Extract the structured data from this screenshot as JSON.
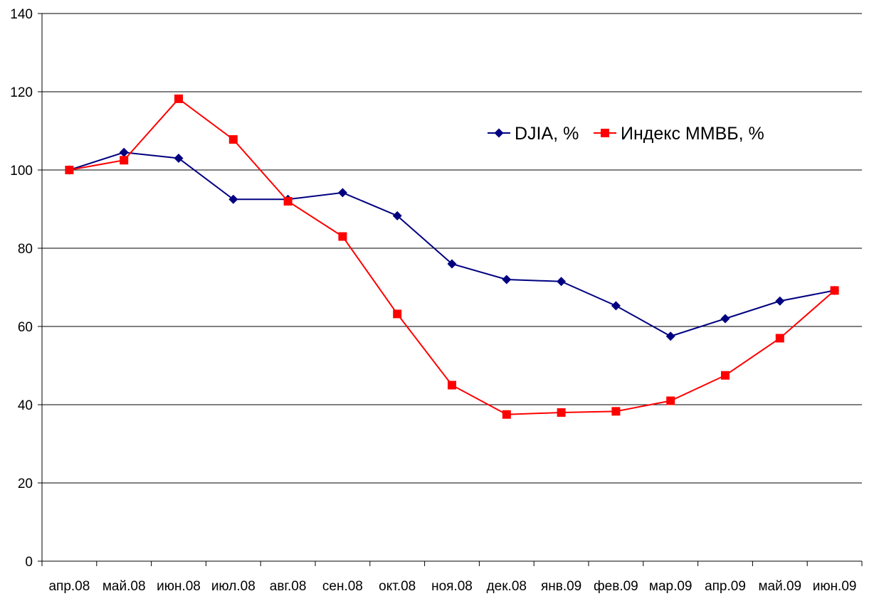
{
  "chart_data": {
    "type": "line",
    "title": "",
    "xlabel": "",
    "ylabel": "",
    "ylim": [
      0,
      140
    ],
    "yticks": [
      0,
      20,
      40,
      60,
      80,
      100,
      120,
      140
    ],
    "grid": "horizontal",
    "legend_position": "top-right",
    "categories": [
      "апр.08",
      "май.08",
      "июн.08",
      "июл.08",
      "авг.08",
      "сен.08",
      "окт.08",
      "ноя.08",
      "дек.08",
      "янв.09",
      "фев.09",
      "мар.09",
      "апр.09",
      "май.09",
      "июн.09"
    ],
    "series": [
      {
        "name": "DJIA, %",
        "color": "#000080",
        "marker": "diamond",
        "values": [
          100,
          104.5,
          103,
          92.5,
          92.5,
          94.2,
          88.3,
          76,
          72,
          71.5,
          65.3,
          57.5,
          62,
          66.5,
          69.2
        ]
      },
      {
        "name": "Индекс ММВБ, %",
        "color": "#ff0000",
        "marker": "square",
        "values": [
          100,
          102.5,
          118.2,
          107.8,
          92,
          83,
          63.2,
          45,
          37.5,
          38,
          38.3,
          41,
          47.5,
          57,
          69.2
        ]
      }
    ]
  }
}
